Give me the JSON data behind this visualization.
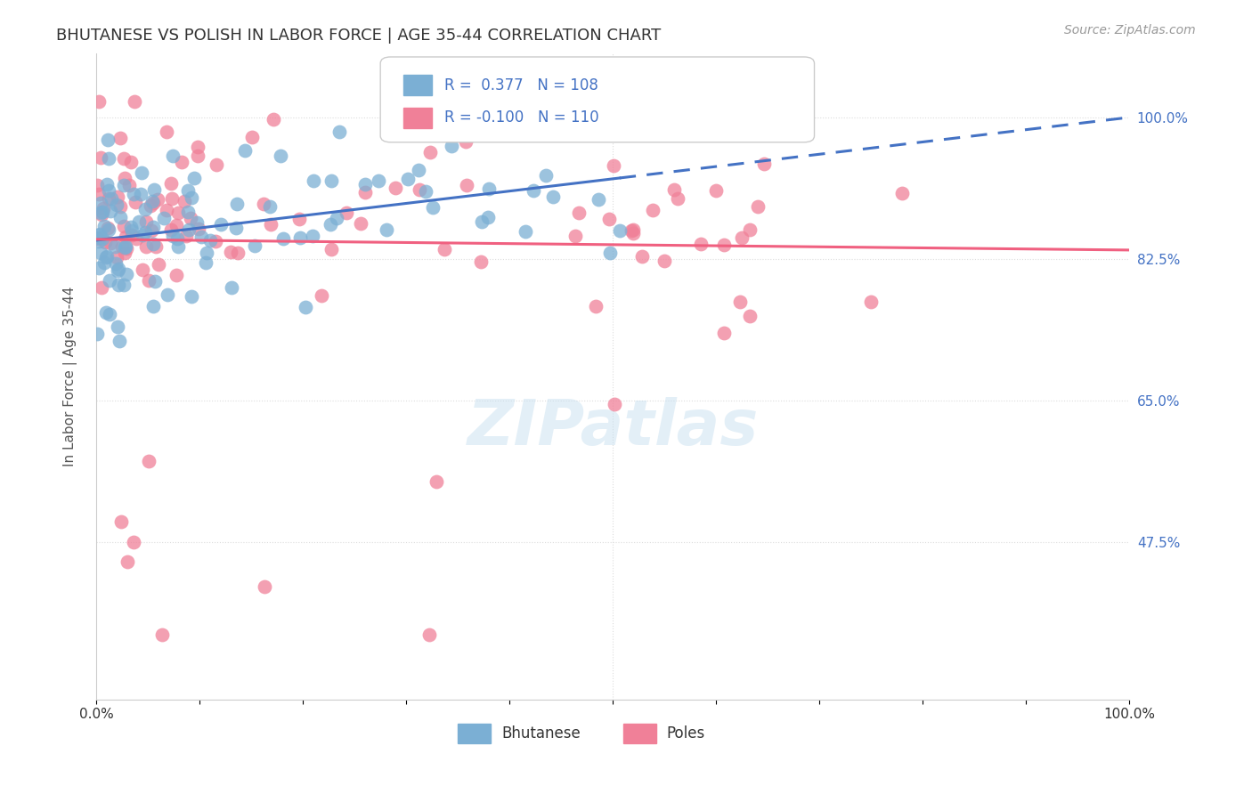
{
  "title": "BHUTANESE VS POLISH IN LABOR FORCE | AGE 35-44 CORRELATION CHART",
  "source": "Source: ZipAtlas.com",
  "ylabel": "In Labor Force | Age 35-44",
  "ytick_labels": [
    "100.0%",
    "82.5%",
    "65.0%",
    "47.5%"
  ],
  "ytick_values": [
    1.0,
    0.825,
    0.65,
    0.475
  ],
  "bhutanese_color": "#7bafd4",
  "poles_color": "#f08098",
  "trend_bhutanese_color": "#4472c4",
  "trend_poles_color": "#f06080",
  "background_color": "#ffffff",
  "grid_color": "#dddddd",
  "axis_color": "#cccccc",
  "seed": 42,
  "N_bhutanese": 108,
  "N_poles": 110,
  "R_bhutanese": 0.377,
  "R_poles": -0.1,
  "xmin": 0.0,
  "xmax": 1.0,
  "ymin": 0.28,
  "ymax": 1.08,
  "title_fontsize": 13,
  "source_fontsize": 10,
  "label_fontsize": 11,
  "tick_fontsize": 11,
  "legend_fontsize": 12
}
